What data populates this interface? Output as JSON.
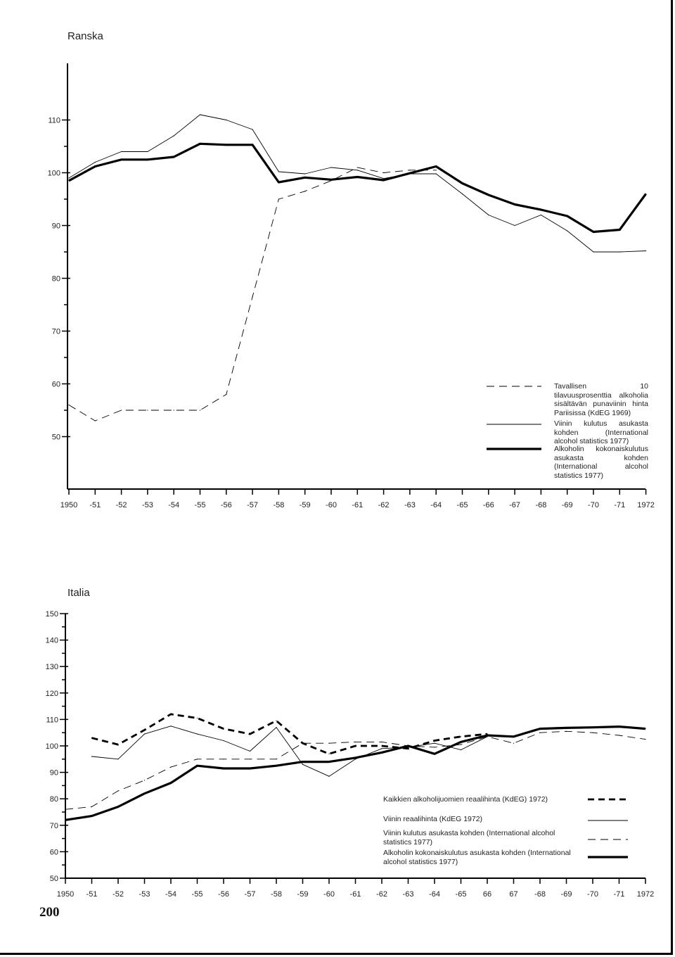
{
  "page_number": "200",
  "chart_data": [
    {
      "type": "line",
      "title": "Ranska",
      "xlabel": "",
      "ylabel": "",
      "categories": [
        "1950",
        "-51",
        "-52",
        "-53",
        "-54",
        "-55",
        "-56",
        "-57",
        "-58",
        "-59",
        "-60",
        "-61",
        "-62",
        "-63",
        "-64",
        "-65",
        "-66",
        "-67",
        "-68",
        "-69",
        "-70",
        "-71",
        "1972"
      ],
      "yticks": [
        "110",
        "100",
        "90",
        "80",
        "70",
        "60",
        "50"
      ],
      "ylim": [
        45,
        115
      ],
      "legend_position": "lower-right",
      "series": [
        {
          "name": "Tavallisen 10 tilavuusprosenttia alkoholia sisältävän punaviinin hinta Pariisissa (KdEG 1969)",
          "style": "dashed-thin",
          "values": [
            56,
            53,
            55,
            55,
            55,
            55,
            58,
            76.5,
            95,
            96.5,
            98.5,
            101,
            100,
            100.5,
            100.5,
            null,
            null,
            null,
            null,
            null,
            null,
            null,
            null
          ]
        },
        {
          "name": "Viinin kulutus asukasta kohden (International alcohol statistics 1977)",
          "style": "solid-thin",
          "values": [
            99,
            102,
            104,
            104,
            107,
            111,
            110,
            108.2,
            100.2,
            99.8,
            101,
            100.5,
            98.9,
            99.8,
            99.8,
            96,
            92,
            90,
            92,
            89,
            85,
            85,
            85.2
          ]
        },
        {
          "name": "Alkoholin kokonaiskulutus asukasta kohden (International alcohol statistics 1977)",
          "style": "solid-thick",
          "values": [
            98.5,
            101.2,
            102.5,
            102.5,
            103,
            105.5,
            105.3,
            105.3,
            98.2,
            99.1,
            98.7,
            99.2,
            98.6,
            99.9,
            101.2,
            98,
            95.8,
            94,
            93,
            91.8,
            88.8,
            89.2,
            96
          ]
        }
      ]
    },
    {
      "type": "line",
      "title": "Italia",
      "xlabel": "",
      "ylabel": "",
      "categories": [
        "1950",
        "-51",
        "-52",
        "-53",
        "-54",
        "-55",
        "-56",
        "-57",
        "-58",
        "-59",
        "-60",
        "-61",
        "-62",
        "-63",
        "-64",
        "-65",
        "66",
        "67",
        "-68",
        "-69",
        "-70",
        "-71",
        "1972"
      ],
      "yticks": [
        "150",
        "140",
        "130",
        "120",
        "110",
        "100",
        "90",
        "80",
        "70",
        "60",
        "50"
      ],
      "ylim": [
        50,
        150
      ],
      "legend_position": "lower-right",
      "series": [
        {
          "name": "Kaikkien alkoholijuomien reaalihinta (KdEG) 1972)",
          "style": "dashed-thick",
          "values": [
            null,
            103,
            100.5,
            106,
            112,
            110.5,
            106.5,
            104.5,
            109.5,
            101,
            97,
            100,
            100,
            99,
            102,
            103.5,
            104.5,
            null,
            null,
            null,
            null,
            null,
            null
          ]
        },
        {
          "name": "Viinin reaalihinta (KdEG 1972)",
          "style": "solid-thin",
          "values": [
            null,
            96,
            95,
            104.5,
            107.5,
            104.5,
            102,
            98,
            107,
            93,
            88.5,
            95,
            99,
            99.5,
            101,
            98.5,
            103.5,
            null,
            null,
            null,
            null,
            null,
            null
          ]
        },
        {
          "name": "Viinin kulutus asukasta kohden (International alcohol statistics 1977)",
          "style": "dashed-thin",
          "values": [
            76,
            77,
            83,
            87,
            92,
            95,
            95,
            95,
            95,
            101,
            101,
            101.5,
            101.5,
            100,
            99.5,
            100.5,
            103.5,
            101,
            105,
            105.5,
            105,
            104,
            102.5
          ]
        },
        {
          "name": "Alkoholin kokonaiskulutus asukasta kohden (International alcohol statistics 1977)",
          "style": "solid-thick",
          "values": [
            72,
            73.5,
            77,
            82,
            86,
            92.5,
            91.5,
            91.5,
            92.5,
            94,
            94,
            95.5,
            97.5,
            100,
            97,
            101.5,
            104,
            103.5,
            106.5,
            106.8,
            107,
            107.3,
            106.5
          ]
        }
      ]
    }
  ]
}
